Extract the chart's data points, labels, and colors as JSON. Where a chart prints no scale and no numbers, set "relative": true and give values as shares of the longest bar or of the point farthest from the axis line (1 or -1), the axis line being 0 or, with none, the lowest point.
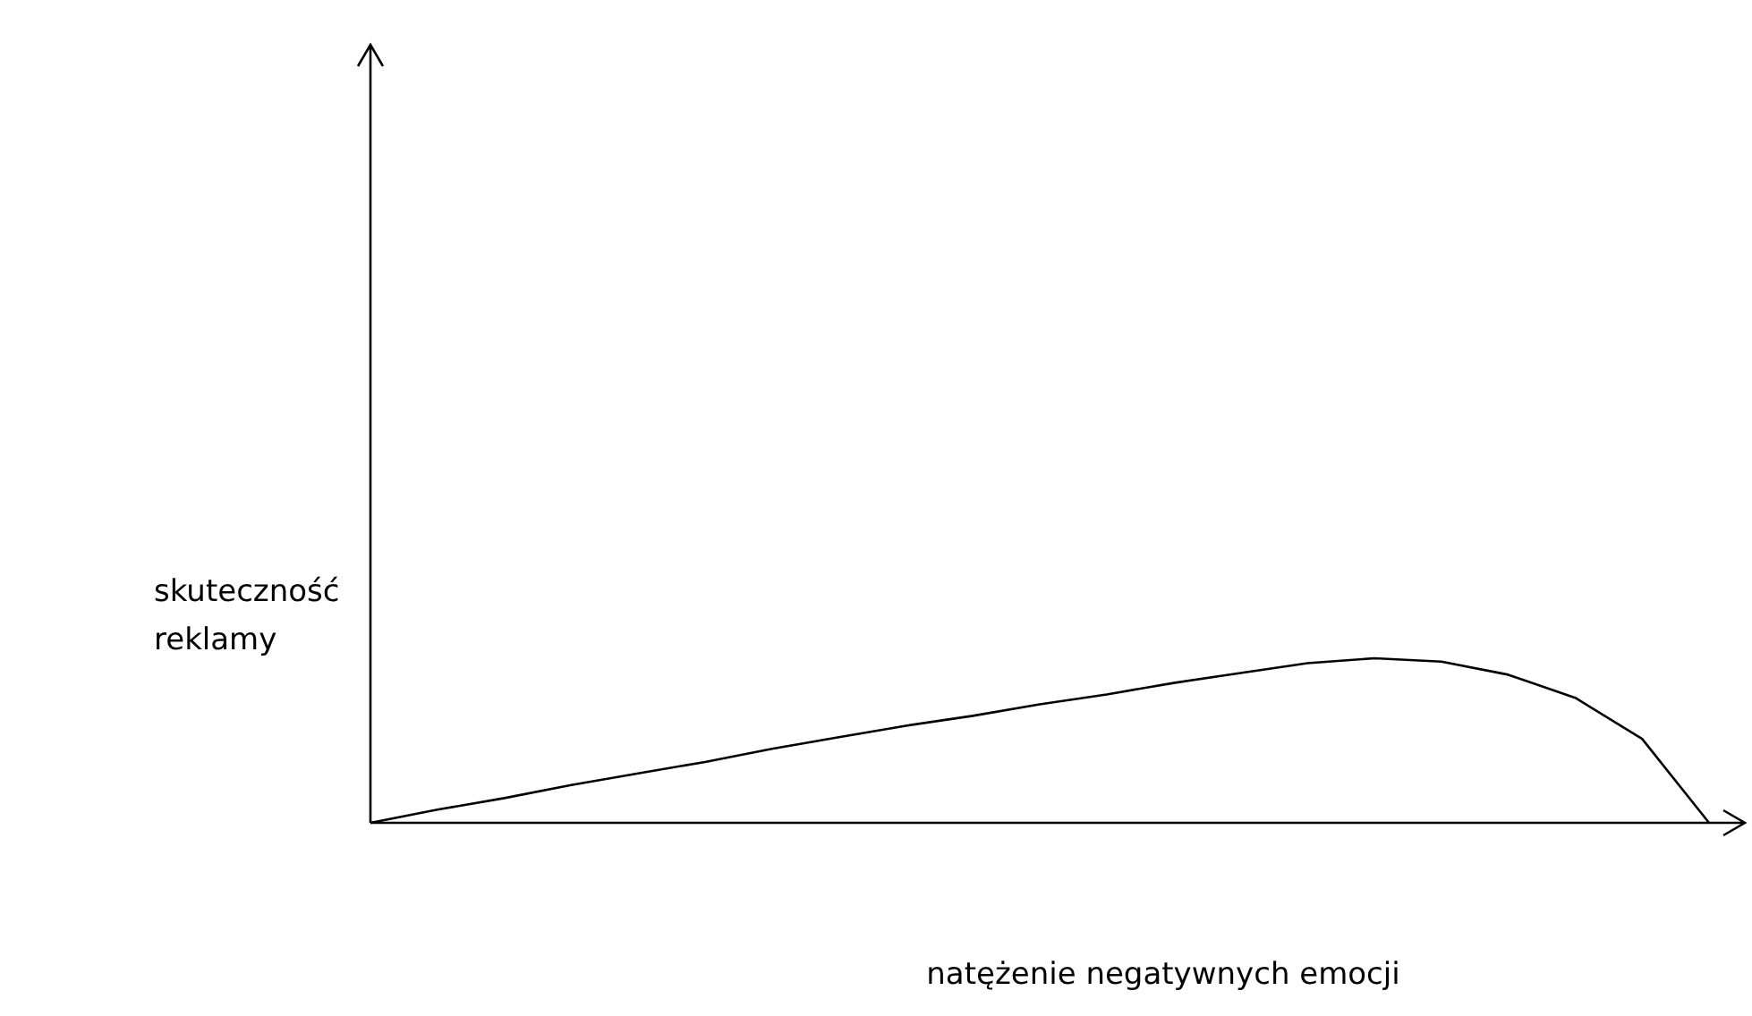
{
  "chart_data": {
    "type": "line",
    "relative": true,
    "xlabel": "natężenie negatywnych emocji",
    "ylabel": "skuteczność reklamy",
    "categories": [
      null,
      null,
      null,
      null,
      null,
      null,
      null,
      null,
      null,
      null,
      null,
      null,
      null,
      null,
      null,
      null,
      null,
      null,
      null,
      null,
      null
    ],
    "series": [
      {
        "color": "#000000",
        "values": [
          0,
          0.08,
          0.15,
          0.23,
          0.3,
          0.37,
          0.45,
          0.52,
          0.59,
          0.65,
          0.72,
          0.78,
          0.85,
          0.91,
          0.97,
          1,
          0.98,
          0.9,
          0.76,
          0.51,
          0
        ]
      }
    ],
    "marker": "none",
    "tick_labels": false
  }
}
